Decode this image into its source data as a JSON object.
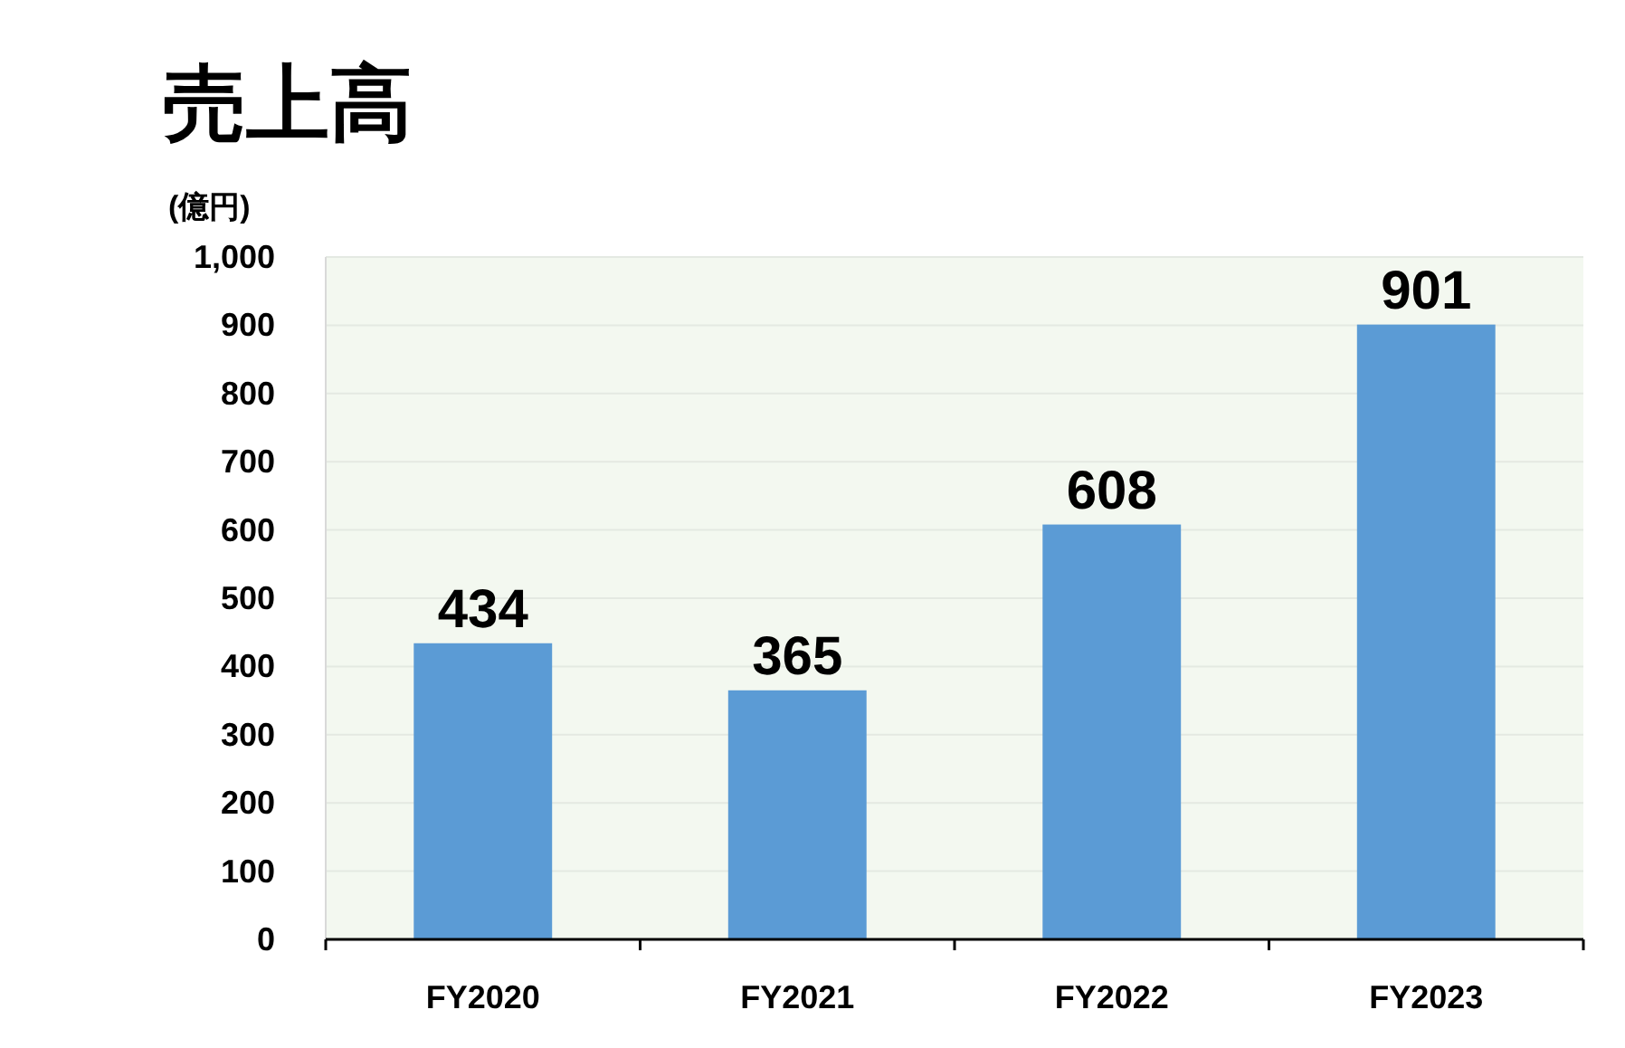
{
  "chart_data": {
    "type": "bar",
    "title": "売上高",
    "ylabel": "(億円)",
    "categories": [
      "FY2020",
      "FY2021",
      "FY2022",
      "FY2023"
    ],
    "values": [
      434,
      365,
      608,
      901
    ],
    "color": "#5b9bd5",
    "ylim": [
      0,
      1000
    ],
    "yticks": [
      0,
      100,
      200,
      300,
      400,
      500,
      600,
      700,
      800,
      900,
      {
        "value": 1000,
        "label": "1,000"
      }
    ],
    "grid": "y",
    "data_labels": true
  }
}
